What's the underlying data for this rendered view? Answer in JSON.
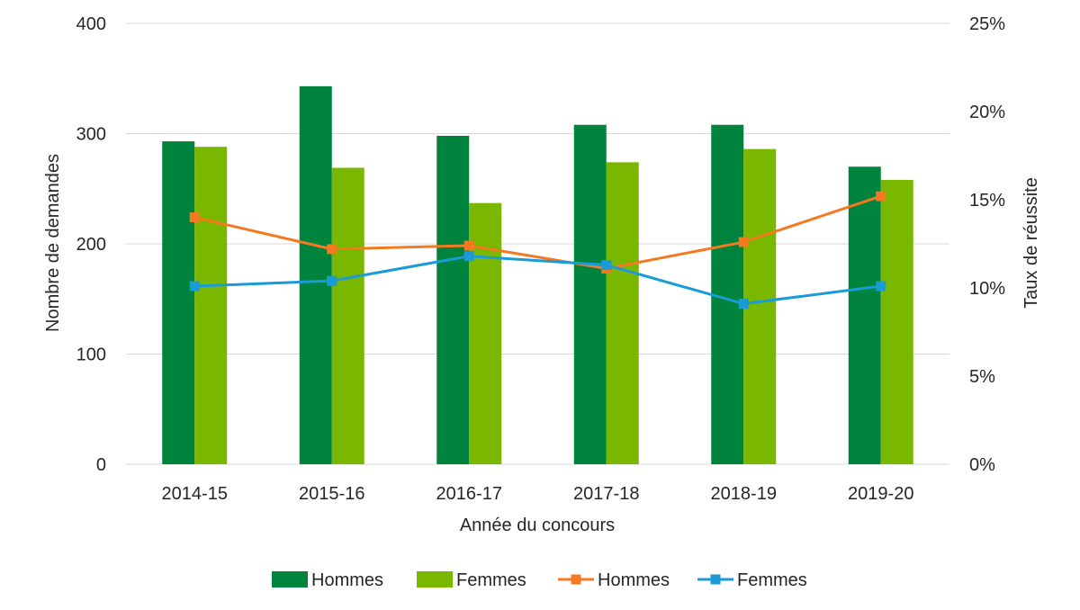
{
  "chart_data": {
    "type": "bar",
    "categories": [
      "2014-15",
      "2015-16",
      "2016-17",
      "2017-18",
      "2018-19",
      "2019-20"
    ],
    "series": [
      {
        "name": "Hommes",
        "kind": "bar",
        "axis": "left",
        "color": "#00843d",
        "values": [
          293,
          343,
          298,
          308,
          308,
          270
        ]
      },
      {
        "name": "Femmes",
        "kind": "bar",
        "axis": "left",
        "color": "#7ab800",
        "values": [
          288,
          269,
          237,
          274,
          286,
          258
        ]
      },
      {
        "name": "Hommes",
        "kind": "line",
        "axis": "right",
        "color": "#f47920",
        "values": [
          14.0,
          12.2,
          12.4,
          11.1,
          12.6,
          15.2
        ]
      },
      {
        "name": "Femmes",
        "kind": "line",
        "axis": "right",
        "color": "#1a9ad6",
        "values": [
          10.1,
          10.4,
          11.8,
          11.3,
          9.1,
          10.1
        ]
      }
    ],
    "xlabel": "Année du concours",
    "ylabel": "Nombre de demandes",
    "y2label": "Taux de réussite",
    "ylim": [
      0,
      400
    ],
    "y2lim": [
      0,
      25
    ],
    "yticks": [
      "0",
      "100",
      "200",
      "300",
      "400"
    ],
    "y2ticks": [
      "0%",
      "5%",
      "10%",
      "15%",
      "20%",
      "25%"
    ],
    "grid": true,
    "legend_position": "bottom"
  }
}
